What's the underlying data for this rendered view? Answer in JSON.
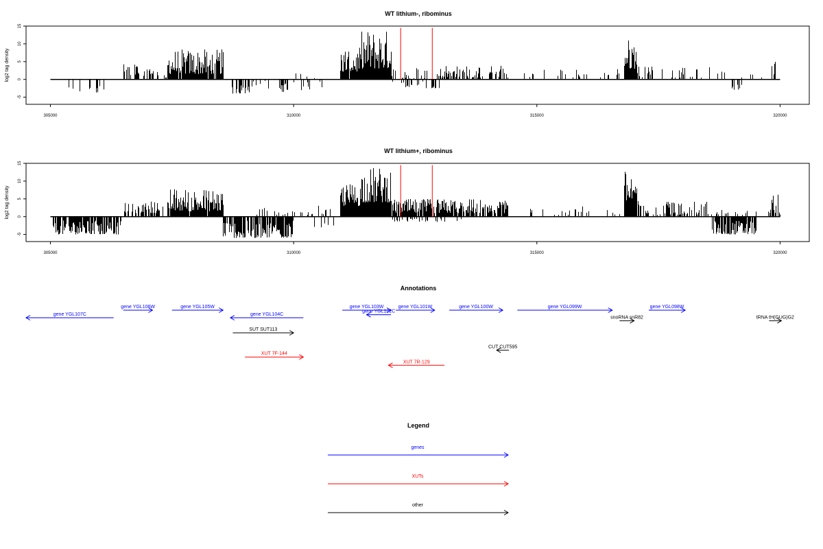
{
  "chart_data": [
    {
      "type": "bar",
      "title": "WT lithium-, ribominus",
      "xlabel": "",
      "ylabel": "log2 tag density",
      "xlim": [
        304500,
        320600
      ],
      "ylim": [
        -7,
        15
      ],
      "xticks": [
        "305000",
        "310000",
        "315000",
        "320000"
      ],
      "yticks": [
        "15",
        "10",
        "5",
        "0",
        "-5"
      ],
      "baseline_range": [
        305000,
        320000
      ],
      "marker_lines": [
        312200,
        312850
      ],
      "marker_color": "#ff0000",
      "signal_regions": [
        {
          "start": 305050,
          "end": 305150,
          "min": -3.5,
          "max": -0.5,
          "density": 0.15
        },
        {
          "start": 305300,
          "end": 305800,
          "min": -3.5,
          "max": -0.5,
          "density": 0.2
        },
        {
          "start": 305800,
          "end": 306150,
          "min": -4,
          "max": -1,
          "density": 0.25
        },
        {
          "start": 306500,
          "end": 307200,
          "min": 1,
          "max": 4.5,
          "density": 0.5
        },
        {
          "start": 307300,
          "end": 307600,
          "min": 0.5,
          "max": 2,
          "density": 0.3
        },
        {
          "start": 307400,
          "end": 308550,
          "min": 1.5,
          "max": 8.5,
          "density": 0.95
        },
        {
          "start": 308650,
          "end": 309100,
          "min": -4,
          "max": -1,
          "density": 0.3
        },
        {
          "start": 309100,
          "end": 309400,
          "min": -2,
          "max": 2,
          "density": 0.15
        },
        {
          "start": 309400,
          "end": 310000,
          "min": -3.5,
          "max": -1,
          "density": 0.3
        },
        {
          "start": 310000,
          "end": 310600,
          "min": -3,
          "max": 2,
          "density": 0.2
        },
        {
          "start": 310950,
          "end": 311400,
          "min": 2,
          "max": 9,
          "density": 0.95
        },
        {
          "start": 311400,
          "end": 312000,
          "min": 3,
          "max": 14,
          "density": 1.0
        },
        {
          "start": 312000,
          "end": 312300,
          "min": -1,
          "max": 3,
          "density": 0.5
        },
        {
          "start": 312300,
          "end": 313000,
          "min": -2.5,
          "max": 4,
          "density": 0.55
        },
        {
          "start": 313000,
          "end": 314400,
          "min": 0.5,
          "max": 4,
          "density": 0.5
        },
        {
          "start": 314600,
          "end": 316000,
          "min": 0.5,
          "max": 3,
          "density": 0.12
        },
        {
          "start": 316000,
          "end": 316800,
          "min": 0.5,
          "max": 3.5,
          "density": 0.2
        },
        {
          "start": 316800,
          "end": 317050,
          "min": 3,
          "max": 11.5,
          "density": 1.0
        },
        {
          "start": 317050,
          "end": 317400,
          "min": 0.5,
          "max": 4,
          "density": 0.3
        },
        {
          "start": 317400,
          "end": 318900,
          "min": 0.5,
          "max": 3.5,
          "density": 0.15
        },
        {
          "start": 319000,
          "end": 319200,
          "min": -3,
          "max": -1,
          "density": 0.3
        },
        {
          "start": 319200,
          "end": 319750,
          "min": 0.5,
          "max": 2,
          "density": 0.08
        },
        {
          "start": 319800,
          "end": 319900,
          "min": 1,
          "max": 5,
          "density": 0.6
        }
      ]
    },
    {
      "type": "bar",
      "title": "WT lithium+, ribominus",
      "xlabel": "",
      "ylabel": "log2 tag density",
      "xlim": [
        304500,
        320600
      ],
      "ylim": [
        -7,
        15
      ],
      "xticks": [
        "305000",
        "310000",
        "315000",
        "320000"
      ],
      "yticks": [
        "15",
        "10",
        "5",
        "0",
        "-5"
      ],
      "baseline_range": [
        305000,
        320000
      ],
      "marker_lines": [
        312200,
        312850
      ],
      "marker_color": "#ff0000",
      "signal_regions": [
        {
          "start": 305050,
          "end": 306450,
          "min": -5,
          "max": -1,
          "density": 0.8
        },
        {
          "start": 306500,
          "end": 307300,
          "min": 1,
          "max": 4.5,
          "density": 0.55
        },
        {
          "start": 307400,
          "end": 308550,
          "min": 1.5,
          "max": 8,
          "density": 0.95
        },
        {
          "start": 308550,
          "end": 310000,
          "min": -6,
          "max": -1,
          "density": 0.8
        },
        {
          "start": 309200,
          "end": 310400,
          "min": 0.5,
          "max": 2.5,
          "density": 0.25
        },
        {
          "start": 310400,
          "end": 310900,
          "min": -3,
          "max": 3.5,
          "density": 0.3
        },
        {
          "start": 310950,
          "end": 311400,
          "min": 3,
          "max": 9.5,
          "density": 1.0
        },
        {
          "start": 311400,
          "end": 312000,
          "min": 4,
          "max": 14,
          "density": 1.0
        },
        {
          "start": 312000,
          "end": 314400,
          "min": 1,
          "max": 5,
          "density": 0.85
        },
        {
          "start": 312000,
          "end": 313500,
          "min": -1.5,
          "max": -0.5,
          "density": 0.2
        },
        {
          "start": 314800,
          "end": 316700,
          "min": 0.5,
          "max": 3,
          "density": 0.15
        },
        {
          "start": 316800,
          "end": 317050,
          "min": 4,
          "max": 13,
          "density": 1.0
        },
        {
          "start": 317050,
          "end": 318600,
          "min": 0.5,
          "max": 4.5,
          "density": 0.45
        },
        {
          "start": 318600,
          "end": 319500,
          "min": -5,
          "max": -1,
          "density": 0.8
        },
        {
          "start": 318600,
          "end": 319500,
          "min": 0.5,
          "max": 2,
          "density": 0.2
        },
        {
          "start": 319750,
          "end": 319950,
          "min": 1,
          "max": 8,
          "density": 0.7
        },
        {
          "start": 319950,
          "end": 320000,
          "min": 0.5,
          "max": 3,
          "density": 0.3
        }
      ]
    },
    {
      "type": "other",
      "title": "Annotations",
      "xlim": [
        304500,
        320600
      ],
      "features": [
        {
          "label": "gene YGL107C",
          "start": 304500,
          "end": 306300,
          "strand": "-",
          "color": "#0000ff",
          "row": 2
        },
        {
          "label": "gene YGL106W",
          "start": 306500,
          "end": 307100,
          "strand": "+",
          "color": "#0000ff",
          "row": 1
        },
        {
          "label": "gene YGL105W",
          "start": 307500,
          "end": 308550,
          "strand": "+",
          "color": "#0000ff",
          "row": 1
        },
        {
          "label": "gene YGL104C",
          "start": 308700,
          "end": 310200,
          "strand": "-",
          "color": "#0000ff",
          "row": 2
        },
        {
          "label": "gene YGL103W",
          "start": 311000,
          "end": 312000,
          "strand": "+",
          "color": "#0000ff",
          "row": 1
        },
        {
          "label": "gene YGL102C",
          "start": 311500,
          "end": 312000,
          "strand": "-",
          "color": "#0000ff",
          "row": 1.6
        },
        {
          "label": "gene YGL101W",
          "start": 312100,
          "end": 312900,
          "strand": "+",
          "color": "#0000ff",
          "row": 1
        },
        {
          "label": "gene YGL100W",
          "start": 313200,
          "end": 314300,
          "strand": "+",
          "color": "#0000ff",
          "row": 1
        },
        {
          "label": "gene YGL099W",
          "start": 314600,
          "end": 316550,
          "strand": "+",
          "color": "#0000ff",
          "row": 1
        },
        {
          "label": "gene YGL098W",
          "start": 317300,
          "end": 318050,
          "strand": "+",
          "color": "#0000ff",
          "row": 1
        },
        {
          "label": "snoRNA snR82",
          "start": 316700,
          "end": 317000,
          "strand": "+",
          "color": "#000000",
          "row": 2.4
        },
        {
          "label": "tRNA tH(GUG)G2",
          "start": 319850,
          "end": 319950,
          "strand": "+",
          "color": "#000000",
          "row": 2.4
        },
        {
          "label": "SUT SUT113",
          "start": 308750,
          "end": 310000,
          "strand": "+",
          "color": "#000000",
          "row": 4
        },
        {
          "label": "CUT CUT595",
          "start": 314250,
          "end": 314350,
          "strand": "-",
          "color": "#000000",
          "row": 6.3
        },
        {
          "label": "XUT 7F-144",
          "start": 309000,
          "end": 310200,
          "strand": "+",
          "color": "#ff0000",
          "row": 7.2
        },
        {
          "label": "XUT 7R-129",
          "start": 311950,
          "end": 313100,
          "strand": "-",
          "color": "#ff0000",
          "row": 8.3
        }
      ]
    },
    {
      "type": "other",
      "title": "Legend",
      "entries": [
        {
          "label": "genes",
          "color": "#0000ff"
        },
        {
          "label": "XUTs",
          "color": "#ff0000"
        },
        {
          "label": "other",
          "color": "#000000"
        }
      ]
    }
  ]
}
